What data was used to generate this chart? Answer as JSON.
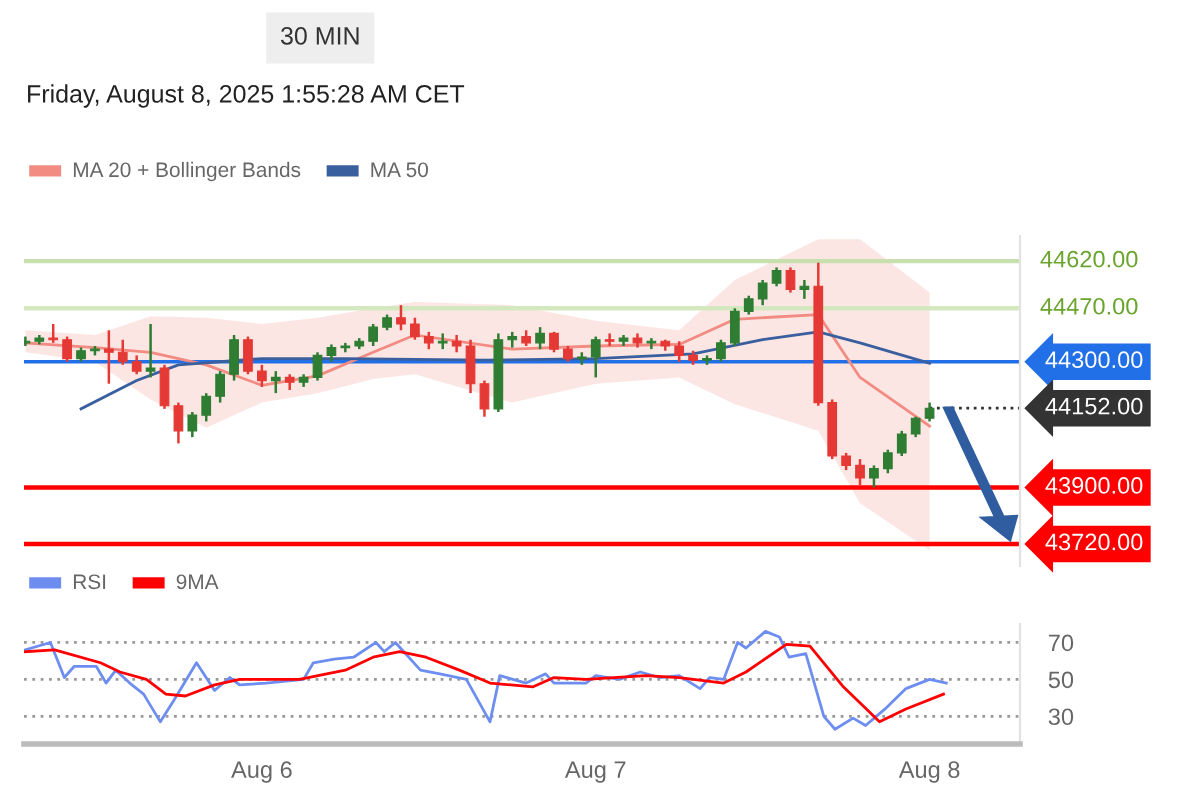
{
  "chart_data": [
    {
      "type": "candlestick",
      "title": "30 MIN",
      "subtitle": "Friday, August 8, 2025 1:55:28 AM CET",
      "x": [
        "2025-08-05T07:00",
        "2025-08-05T08:00",
        "2025-08-05T09:00",
        "2025-08-05T10:00",
        "2025-08-05T11:00",
        "2025-08-05T12:00",
        "2025-08-05T13:00",
        "2025-08-05T14:00",
        "2025-08-05T15:00",
        "2025-08-05T16:00",
        "2025-08-05T17:00",
        "2025-08-05T18:00",
        "2025-08-05T19:00",
        "2025-08-05T20:00",
        "2025-08-05T21:00",
        "2025-08-05T22:00",
        "2025-08-05T23:00",
        "2025-08-06T00:00",
        "2025-08-06T01:00",
        "2025-08-06T02:00",
        "2025-08-06T03:00",
        "2025-08-06T04:00",
        "2025-08-06T05:00",
        "2025-08-06T06:00",
        "2025-08-06T07:00",
        "2025-08-06T08:00",
        "2025-08-06T09:00",
        "2025-08-06T10:00",
        "2025-08-06T11:00",
        "2025-08-06T12:00",
        "2025-08-06T13:00",
        "2025-08-06T14:00",
        "2025-08-06T15:00",
        "2025-08-06T16:00",
        "2025-08-06T17:00",
        "2025-08-06T18:00",
        "2025-08-06T19:00",
        "2025-08-06T20:00",
        "2025-08-06T21:00",
        "2025-08-06T22:00",
        "2025-08-06T23:00",
        "2025-08-07T00:00",
        "2025-08-07T01:00",
        "2025-08-07T02:00",
        "2025-08-07T03:00",
        "2025-08-07T04:00",
        "2025-08-07T05:00",
        "2025-08-07T06:00",
        "2025-08-07T07:00",
        "2025-08-07T08:00",
        "2025-08-07T09:00",
        "2025-08-07T10:00",
        "2025-08-07T11:00",
        "2025-08-07T12:00",
        "2025-08-07T13:00",
        "2025-08-07T14:00",
        "2025-08-07T15:00",
        "2025-08-07T16:00",
        "2025-08-07T17:00",
        "2025-08-07T18:00",
        "2025-08-07T19:00",
        "2025-08-07T20:00",
        "2025-08-07T21:00",
        "2025-08-07T22:00",
        "2025-08-07T23:00",
        "2025-08-08T00:00"
      ],
      "ohlc": [
        [
          44360,
          44380,
          44350,
          44365
        ],
        [
          44365,
          44385,
          44355,
          44375
        ],
        [
          44375,
          44420,
          44360,
          44370
        ],
        [
          44370,
          44380,
          44300,
          44310
        ],
        [
          44310,
          44345,
          44300,
          44335
        ],
        [
          44335,
          44350,
          44320,
          44340
        ],
        [
          44340,
          44400,
          44230,
          44330
        ],
        [
          44330,
          44370,
          44290,
          44300
        ],
        [
          44300,
          44320,
          44260,
          44270
        ],
        [
          44270,
          44420,
          44250,
          44280
        ],
        [
          44280,
          44290,
          44150,
          44160
        ],
        [
          44160,
          44170,
          44040,
          44080
        ],
        [
          44080,
          44140,
          44060,
          44130
        ],
        [
          44130,
          44200,
          44110,
          44190
        ],
        [
          44190,
          44270,
          44170,
          44260
        ],
        [
          44260,
          44385,
          44240,
          44370
        ],
        [
          44370,
          44380,
          44260,
          44270
        ],
        [
          44270,
          44290,
          44220,
          44240
        ],
        [
          44240,
          44270,
          44200,
          44250
        ],
        [
          44250,
          44260,
          44210,
          44235
        ],
        [
          44235,
          44260,
          44220,
          44250
        ],
        [
          44250,
          44330,
          44240,
          44320
        ],
        [
          44320,
          44355,
          44300,
          44345
        ],
        [
          44345,
          44360,
          44330,
          44350
        ],
        [
          44350,
          44375,
          44340,
          44365
        ],
        [
          44365,
          44420,
          44350,
          44410
        ],
        [
          44410,
          44450,
          44400,
          44440
        ],
        [
          44440,
          44480,
          44400,
          44420
        ],
        [
          44420,
          44440,
          44370,
          44380
        ],
        [
          44380,
          44395,
          44340,
          44360
        ],
        [
          44360,
          44390,
          44340,
          44365
        ],
        [
          44365,
          44385,
          44330,
          44350
        ],
        [
          44350,
          44370,
          44200,
          44230
        ],
        [
          44230,
          44240,
          44125,
          44150
        ],
        [
          44150,
          44390,
          44140,
          44370
        ],
        [
          44370,
          44395,
          44345,
          44380
        ],
        [
          44380,
          44400,
          44350,
          44360
        ],
        [
          44360,
          44410,
          44340,
          44390
        ],
        [
          44390,
          44395,
          44330,
          44340
        ],
        [
          44340,
          44350,
          44300,
          44310
        ],
        [
          44310,
          44330,
          44290,
          44315
        ],
        [
          44315,
          44380,
          44250,
          44370
        ],
        [
          44370,
          44390,
          44350,
          44365
        ],
        [
          44365,
          44385,
          44350,
          44375
        ],
        [
          44375,
          44390,
          44345,
          44360
        ],
        [
          44360,
          44375,
          44340,
          44365
        ],
        [
          44365,
          44370,
          44335,
          44350
        ],
        [
          44350,
          44365,
          44300,
          44320
        ],
        [
          44320,
          44335,
          44290,
          44305
        ],
        [
          44305,
          44320,
          44290,
          44310
        ],
        [
          44310,
          44370,
          44300,
          44360
        ],
        [
          44360,
          44470,
          44350,
          44460
        ],
        [
          44460,
          44510,
          44450,
          44500
        ],
        [
          44500,
          44560,
          44480,
          44550
        ],
        [
          44550,
          44600,
          44540,
          44590
        ],
        [
          44590,
          44600,
          44520,
          44530
        ],
        [
          44530,
          44560,
          44500,
          44540
        ],
        [
          44540,
          44615,
          44160,
          44170
        ],
        [
          44170,
          44180,
          43990,
          44000
        ],
        [
          44000,
          44010,
          43955,
          43970
        ],
        [
          43970,
          43990,
          43905,
          43930
        ],
        [
          43930,
          43970,
          43900,
          43960
        ],
        [
          43960,
          44020,
          43945,
          44010
        ],
        [
          44010,
          44080,
          44000,
          44070
        ],
        [
          44070,
          44125,
          44060,
          44120
        ],
        [
          44120,
          44170,
          44110,
          44152
        ]
      ],
      "colors": [
        "#2e7d32",
        "#2e7d32",
        "#e53935",
        "#e53935",
        "#2e7d32",
        "#2e7d32",
        "#e53935",
        "#e53935",
        "#e53935",
        "#2e7d32",
        "#e53935",
        "#e53935",
        "#2e7d32",
        "#2e7d32",
        "#2e7d32",
        "#2e7d32",
        "#e53935",
        "#e53935",
        "#2e7d32",
        "#e53935",
        "#2e7d32",
        "#2e7d32",
        "#2e7d32",
        "#2e7d32",
        "#2e7d32",
        "#2e7d32",
        "#2e7d32",
        "#e53935",
        "#e53935",
        "#e53935",
        "#2e7d32",
        "#e53935",
        "#e53935",
        "#e53935",
        "#2e7d32",
        "#2e7d32",
        "#e53935",
        "#2e7d32",
        "#e53935",
        "#e53935",
        "#2e7d32",
        "#2e7d32",
        "#e53935",
        "#2e7d32",
        "#e53935",
        "#2e7d32",
        "#e53935",
        "#e53935",
        "#e53935",
        "#2e7d32",
        "#2e7d32",
        "#2e7d32",
        "#2e7d32",
        "#2e7d32",
        "#2e7d32",
        "#e53935",
        "#2e7d32",
        "#e53935",
        "#e53935",
        "#e53935",
        "#e53935",
        "#2e7d32",
        "#2e7d32",
        "#2e7d32",
        "#2e7d32",
        "#2e7d32"
      ],
      "series": [
        {
          "name": "MA 20 + Bollinger Bands",
          "type": "line",
          "color": "#f28b82",
          "x": [
            "2025-08-05T07:00",
            "2025-08-05T12:00",
            "2025-08-05T16:00",
            "2025-08-05T20:00",
            "2025-08-06T00:00",
            "2025-08-06T04:00",
            "2025-08-06T08:00",
            "2025-08-06T11:00",
            "2025-08-06T18:00",
            "2025-08-07T00:00",
            "2025-08-07T06:00",
            "2025-08-07T10:00",
            "2025-08-07T16:00",
            "2025-08-07T19:00",
            "2025-08-08T00:00"
          ],
          "values": [
            44360,
            44345,
            44330,
            44290,
            44225,
            44255,
            44330,
            44385,
            44340,
            44350,
            44355,
            44435,
            44450,
            44250,
            44095
          ],
          "upper": [
            44400,
            44385,
            44445,
            44440,
            44420,
            44440,
            44470,
            44490,
            44480,
            44430,
            44400,
            44560,
            44690,
            44690,
            44520
          ],
          "lower": [
            44330,
            44300,
            44180,
            44090,
            44170,
            44200,
            44245,
            44260,
            44170,
            44230,
            44250,
            44165,
            44080,
            43850,
            43700
          ]
        },
        {
          "name": "MA 50",
          "type": "line",
          "color": "#3a5f9e",
          "x": [
            "2025-08-05T11:00",
            "2025-08-05T15:00",
            "2025-08-05T18:00",
            "2025-08-06T00:00",
            "2025-08-06T06:00",
            "2025-08-06T16:00",
            "2025-08-07T00:00",
            "2025-08-07T07:00",
            "2025-08-07T12:00",
            "2025-08-07T16:00",
            "2025-08-07T19:00",
            "2025-08-08T00:00"
          ],
          "values": [
            44150,
            44240,
            44290,
            44310,
            44310,
            44305,
            44310,
            44325,
            44370,
            44395,
            44360,
            44295
          ]
        }
      ],
      "ref_lines": [
        {
          "axis": "y",
          "value": 44620,
          "label": "44620.00",
          "color": "#c8e0ad",
          "line_style": "solid"
        },
        {
          "axis": "y",
          "value": 44470,
          "label": "44470.00",
          "color": "#d3e8bf",
          "line_style": "solid"
        },
        {
          "axis": "y",
          "value": 44300,
          "label": "44300.00",
          "color": "#2270e8",
          "line_style": "solid"
        },
        {
          "axis": "y",
          "value": 44152,
          "label": "44152.00",
          "color": "#333333",
          "line_style": "dotted"
        },
        {
          "axis": "y",
          "value": 43900,
          "label": "43900.00",
          "color": "#ff0000",
          "line_style": "solid"
        },
        {
          "axis": "y",
          "value": 43720,
          "label": "43720.00",
          "color": "#ff0000",
          "line_style": "solid"
        }
      ],
      "xlim": [
        "2025-08-05T06:54",
        "2025-08-08T06:30"
      ],
      "ylim": [
        43650,
        44700
      ],
      "tick_labels": false,
      "legend": "top left"
    },
    {
      "type": "line",
      "xlim": [
        "2025-08-05T06:54",
        "2025-08-08T06:30"
      ],
      "ylim": [
        15,
        80
      ],
      "yticks": [
        30,
        50,
        70
      ],
      "xticks": [
        {
          "value": "2025-08-06",
          "label": "Aug 6"
        },
        {
          "value": "2025-08-07",
          "label": "Aug 7"
        },
        {
          "value": "2025-08-08",
          "label": "Aug 8"
        }
      ],
      "grid": "y",
      "legend": "top left",
      "series": [
        {
          "name": "RSI",
          "color": "#6d8ef0",
          "x": [
            "2025-08-05T07:00",
            "2025-08-05T08:48",
            "2025-08-05T09:48",
            "2025-08-05T10:30",
            "2025-08-05T11:12",
            "2025-08-05T12:06",
            "2025-08-05T12:48",
            "2025-08-05T13:30",
            "2025-08-05T14:30",
            "2025-08-05T15:30",
            "2025-08-05T16:42",
            "2025-08-05T17:42",
            "2025-08-05T19:18",
            "2025-08-05T20:36",
            "2025-08-05T21:42",
            "2025-08-05T22:24",
            "2025-08-06T00:18",
            "2025-08-06T03:00",
            "2025-08-06T03:42",
            "2025-08-06T05:12",
            "2025-08-06T06:36",
            "2025-08-06T08:12",
            "2025-08-06T08:48",
            "2025-08-06T09:36",
            "2025-08-06T11:24",
            "2025-08-06T12:48",
            "2025-08-06T14:42",
            "2025-08-06T16:24",
            "2025-08-06T17:06",
            "2025-08-06T19:00",
            "2025-08-06T20:24",
            "2025-08-06T21:00",
            "2025-08-06T23:18",
            "2025-08-07T00:00",
            "2025-08-07T01:42",
            "2025-08-07T03:12",
            "2025-08-07T04:36",
            "2025-08-07T06:00",
            "2025-08-07T07:30",
            "2025-08-07T08:12",
            "2025-08-07T09:12",
            "2025-08-07T10:12",
            "2025-08-07T10:48",
            "2025-08-07T12:12",
            "2025-08-07T13:12",
            "2025-08-07T13:54",
            "2025-08-07T15:06",
            "2025-08-07T16:24",
            "2025-08-07T17:12",
            "2025-08-07T18:30",
            "2025-08-07T19:24",
            "2025-08-07T20:48",
            "2025-08-07T22:18",
            "2025-08-08T00:00",
            "2025-08-08T01:12"
          ],
          "values": [
            66,
            70,
            51,
            57,
            57,
            57,
            48,
            55,
            48,
            42,
            27,
            39,
            59,
            44,
            51,
            47,
            48,
            50,
            59,
            61,
            62,
            70,
            65,
            70,
            55,
            53,
            50,
            27,
            52,
            48,
            53,
            48,
            48,
            52,
            50,
            54,
            51,
            52,
            45,
            51,
            50,
            70,
            67,
            76,
            73,
            62,
            64,
            30,
            23,
            29,
            25,
            34,
            45,
            50,
            48
          ]
        },
        {
          "name": "9MA",
          "color": "#ff0000",
          "x": [
            "2025-08-05T07:00",
            "2025-08-05T09:06",
            "2025-08-05T12:24",
            "2025-08-05T13:48",
            "2025-08-05T15:42",
            "2025-08-05T17:06",
            "2025-08-05T18:30",
            "2025-08-05T20:36",
            "2025-08-05T22:24",
            "2025-08-06T02:42",
            "2025-08-06T06:00",
            "2025-08-06T08:00",
            "2025-08-06T09:54",
            "2025-08-06T11:48",
            "2025-08-06T14:12",
            "2025-08-06T16:24",
            "2025-08-06T19:30",
            "2025-08-06T21:00",
            "2025-08-06T23:18",
            "2025-08-07T03:36",
            "2025-08-07T06:00",
            "2025-08-07T09:12",
            "2025-08-07T10:48",
            "2025-08-07T13:42",
            "2025-08-07T15:24",
            "2025-08-07T17:48",
            "2025-08-07T20:24",
            "2025-08-07T22:18",
            "2025-08-08T01:00"
          ],
          "values": [
            65,
            66,
            59,
            54,
            50,
            42,
            41,
            47,
            50,
            50,
            55,
            62,
            65,
            62,
            55,
            48,
            46,
            51,
            50,
            52,
            51,
            48,
            54,
            69,
            68,
            46,
            27,
            34,
            42
          ]
        }
      ]
    }
  ]
}
